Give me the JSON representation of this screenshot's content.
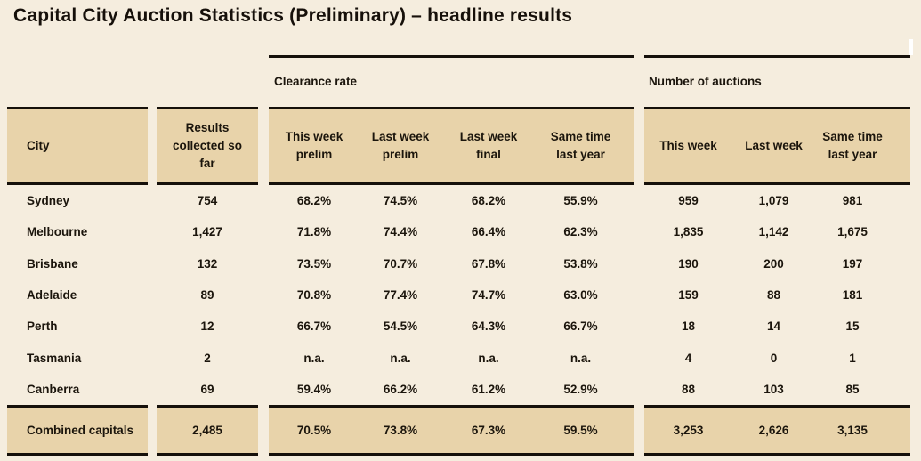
{
  "title": "Capital City Auction Statistics (Preliminary) – headline results",
  "colors": {
    "background": "#f5edde",
    "band": "#e8d3aa",
    "rule": "#15100a",
    "ink": "#1b150c",
    "scrollbar": "#ffffff"
  },
  "table": {
    "groups": [
      {
        "label": "Clearance rate"
      },
      {
        "label": "Number of auctions"
      }
    ],
    "columns": {
      "city": "City",
      "results": "Results\ncollected so\nfar",
      "clearance": [
        "This week\nprelim",
        "Last week\nprelim",
        "Last week\nfinal",
        "Same time\nlast year"
      ],
      "auctions": [
        "This week",
        "Last week",
        "Same time\nlast year"
      ]
    },
    "rows": [
      {
        "city": "Sydney",
        "results": "754",
        "clearance": [
          "68.2%",
          "74.5%",
          "68.2%",
          "55.9%"
        ],
        "auctions": [
          "959",
          "1,079",
          "981"
        ]
      },
      {
        "city": "Melbourne",
        "results": "1,427",
        "clearance": [
          "71.8%",
          "74.4%",
          "66.4%",
          "62.3%"
        ],
        "auctions": [
          "1,835",
          "1,142",
          "1,675"
        ]
      },
      {
        "city": "Brisbane",
        "results": "132",
        "clearance": [
          "73.5%",
          "70.7%",
          "67.8%",
          "53.8%"
        ],
        "auctions": [
          "190",
          "200",
          "197"
        ]
      },
      {
        "city": "Adelaide",
        "results": "89",
        "clearance": [
          "70.8%",
          "77.4%",
          "74.7%",
          "63.0%"
        ],
        "auctions": [
          "159",
          "88",
          "181"
        ]
      },
      {
        "city": "Perth",
        "results": "12",
        "clearance": [
          "66.7%",
          "54.5%",
          "64.3%",
          "66.7%"
        ],
        "auctions": [
          "18",
          "14",
          "15"
        ]
      },
      {
        "city": "Tasmania",
        "results": "2",
        "clearance": [
          "n.a.",
          "n.a.",
          "n.a.",
          "n.a."
        ],
        "auctions": [
          "4",
          "0",
          "1"
        ]
      },
      {
        "city": "Canberra",
        "results": "69",
        "clearance": [
          "59.4%",
          "66.2%",
          "61.2%",
          "52.9%"
        ],
        "auctions": [
          "88",
          "103",
          "85"
        ]
      }
    ],
    "footer": {
      "city": "Combined capitals",
      "results": "2,485",
      "clearance": [
        "70.5%",
        "73.8%",
        "67.3%",
        "59.5%"
      ],
      "auctions": [
        "3,253",
        "2,626",
        "3,135"
      ]
    }
  }
}
